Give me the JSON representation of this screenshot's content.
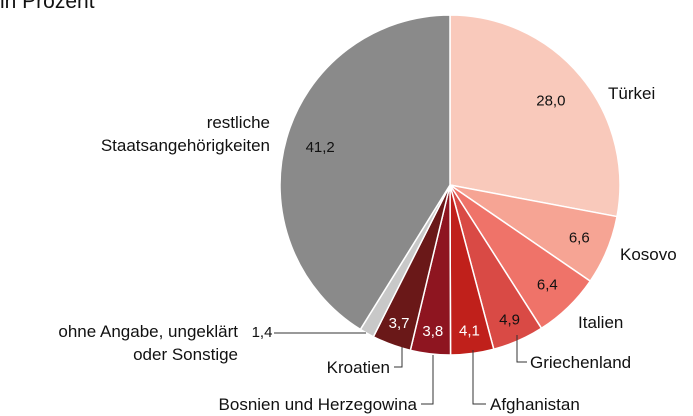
{
  "chart_data": {
    "type": "pie",
    "title": "in Prozent",
    "categories": [
      "Türkei",
      "Kosovo",
      "Italien",
      "Griechenland",
      "Afghanistan",
      "Bosnien und Herzegowina",
      "Kroatien",
      "ohne Angabe, ungeklärt\noder Sonstige",
      "restliche\nStaatsangehörigkeiten"
    ],
    "values": [
      28.0,
      6.6,
      6.4,
      4.9,
      4.1,
      3.8,
      3.7,
      1.4,
      41.2
    ],
    "value_labels": [
      "28,0",
      "6,6",
      "6,4",
      "4,9",
      "4,1",
      "3,8",
      "3,7",
      "1,4",
      "41,2"
    ],
    "colors": [
      "#f9c9bb",
      "#f6a494",
      "#ef7369",
      "#d94a45",
      "#c0201b",
      "#8e1520",
      "#6a1818",
      "#c8c8c8",
      "#8a8a8a"
    ]
  }
}
